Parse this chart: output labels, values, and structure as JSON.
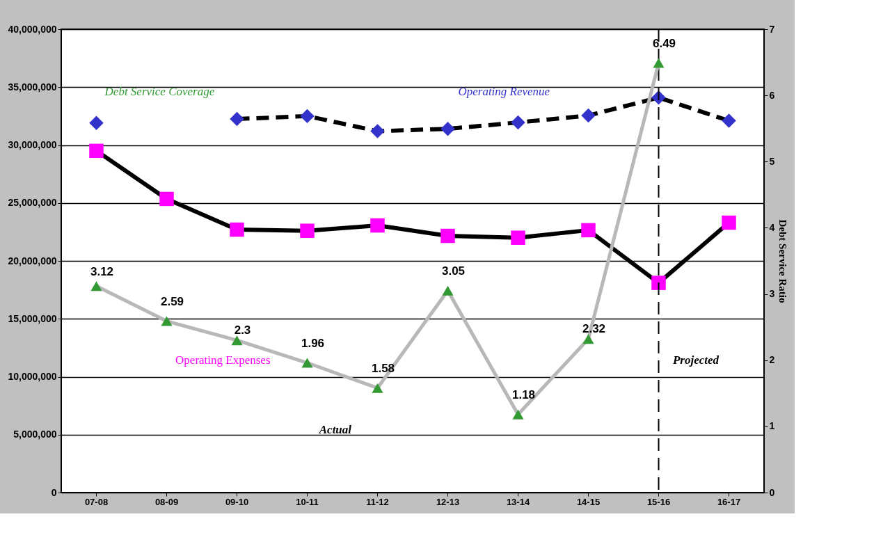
{
  "chart_data": {
    "type": "line",
    "ylabel": null,
    "y2label": "Debt Service Ratio",
    "categories": [
      "07-08",
      "08-09",
      "09-10",
      "10-11",
      "11-12",
      "12-13",
      "13-14",
      "14-15",
      "15-16",
      "16-17"
    ],
    "series": [
      {
        "name": "Operating Revenue",
        "color": "#3333cc",
        "marker": "diamond",
        "line_style": "dashed",
        "values": [
          31900000,
          null,
          32250000,
          32500000,
          31200000,
          31400000,
          31950000,
          32550000,
          34100000,
          32100000
        ]
      },
      {
        "name": "Operating Expenses",
        "color": "#ff00ff",
        "marker": "square",
        "line_style": "solid",
        "values": [
          29500000,
          25350000,
          22700000,
          22600000,
          23060000,
          22160000,
          22000000,
          22650000,
          18100000,
          23300000
        ]
      },
      {
        "name": "Debt Service Coverage",
        "color": "#339933",
        "marker": "triangle",
        "line_style": "solid",
        "axis": "y2",
        "values": [
          3.12,
          2.59,
          2.3,
          1.96,
          1.58,
          3.05,
          1.18,
          2.32,
          6.49,
          null
        ],
        "value_labels": [
          "3.12",
          "2.59",
          "2.3",
          "1.96",
          "1.58",
          "3.05",
          "1.18",
          "2.32",
          "6.49",
          null
        ]
      }
    ],
    "ylim": [
      0,
      40000000
    ],
    "yticks": [
      0,
      {
        "value": 5000000,
        "label": "5,000,000"
      },
      {
        "value": 10000000,
        "label": "10,000,000"
      },
      {
        "value": 15000000,
        "label": "15,000,000"
      },
      {
        "value": 20000000,
        "label": "20,000,000"
      },
      {
        "value": 25000000,
        "label": "25,000,000"
      },
      {
        "value": 30000000,
        "label": "30,000,000"
      },
      {
        "value": 35000000,
        "label": "35,000,000"
      },
      {
        "value": 40000000,
        "label": "40,000,000"
      }
    ],
    "y2lim": [
      0,
      7
    ],
    "y2ticks": [
      0,
      1,
      2,
      3,
      4,
      5,
      6,
      7
    ],
    "grid": "y",
    "legend": false,
    "ref_lines": [
      {
        "axis": "x",
        "value": "15-16",
        "label": null,
        "line_style": "dashed",
        "color": "#000000"
      }
    ],
    "annotations": [
      "Actual",
      "Projected"
    ]
  }
}
